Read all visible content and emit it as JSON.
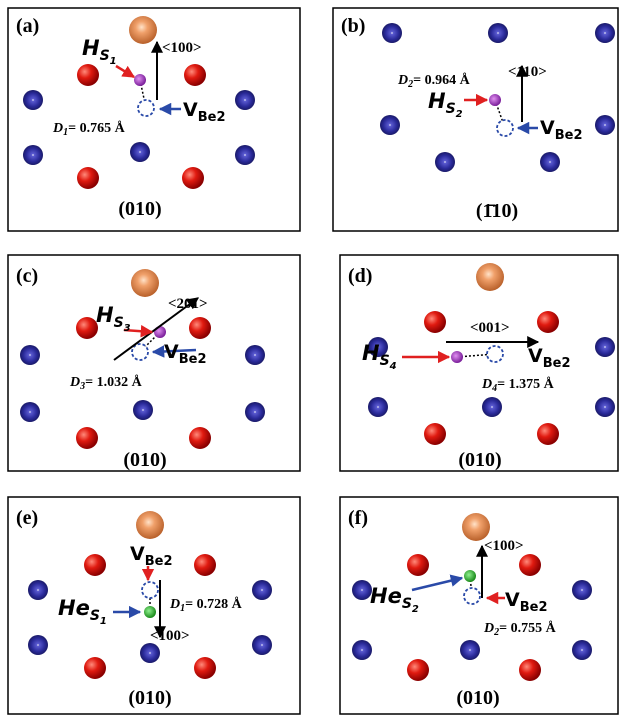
{
  "panels": [
    {
      "label": "(a)",
      "atom": {
        "symbol": "H",
        "sub": "S",
        "index": "1"
      },
      "vacancy": {
        "symbol": "V",
        "sub": "Be2"
      },
      "direction": "<100>",
      "distance": {
        "symbol": "D",
        "index": "1",
        "value": "= 0.765 Å"
      },
      "plane": "(010)"
    },
    {
      "label": "(b)",
      "atom": {
        "symbol": "H",
        "sub": "S",
        "index": "2"
      },
      "vacancy": {
        "symbol": "V",
        "sub": "Be2"
      },
      "direction": "<110>",
      "distance": {
        "symbol": "D",
        "index": "2",
        "value": "= 0.964 Å"
      },
      "plane": "(1̄10)"
    },
    {
      "label": "(c)",
      "atom": {
        "symbol": "H",
        "sub": "S",
        "index": "3"
      },
      "vacancy": {
        "symbol": "V",
        "sub": "Be2"
      },
      "direction": "<201>",
      "distance": {
        "symbol": "D",
        "index": "3",
        "value": "= 1.032 Å"
      },
      "plane": "(010)"
    },
    {
      "label": "(d)",
      "atom": {
        "symbol": "H",
        "sub": "S",
        "index": "4"
      },
      "vacancy": {
        "symbol": "V",
        "sub": "Be2"
      },
      "direction": "<001>",
      "distance": {
        "symbol": "D",
        "index": "4",
        "value": "= 1.375 Å"
      },
      "plane": "(010)"
    },
    {
      "label": "(e)",
      "atom": {
        "symbol": "He",
        "sub": "S",
        "index": "1"
      },
      "vacancy": {
        "symbol": "V",
        "sub": "Be2"
      },
      "direction": "<100>",
      "distance": {
        "symbol": "D",
        "index": "1",
        "value": "= 0.728 Å"
      },
      "plane": "(010)"
    },
    {
      "label": "(f)",
      "atom": {
        "symbol": "He",
        "sub": "S",
        "index": "2"
      },
      "vacancy": {
        "symbol": "V",
        "sub": "Be2"
      },
      "direction": "<100>",
      "distance": {
        "symbol": "D",
        "index": "2",
        "value": "= 0.755 Å"
      },
      "plane": "(010)"
    }
  ]
}
